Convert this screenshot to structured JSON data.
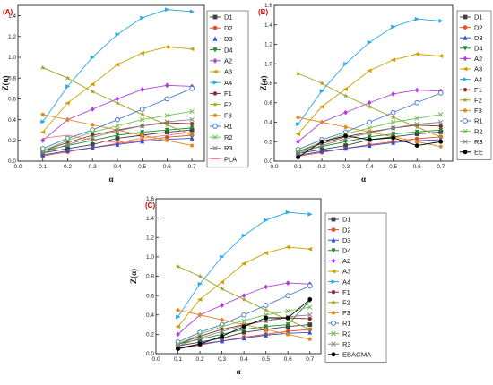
{
  "figure": {
    "background": "#ffffff"
  },
  "chart_data": [
    {
      "panel_label": "(A)",
      "type": "line",
      "xlabel": "α",
      "ylabel": "Z(α)",
      "x": [
        0.1,
        0.2,
        0.3,
        0.4,
        0.5,
        0.6,
        0.7
      ],
      "xlim": [
        0.0,
        0.75
      ],
      "ylim": [
        0.0,
        1.5
      ],
      "xticks": [
        "0.0",
        "0.1",
        "0.2",
        "0.3",
        "0.4",
        "0.5",
        "0.6",
        "0.7"
      ],
      "yticks": [
        "0.0",
        "0.2",
        "0.4",
        "0.6",
        "0.8",
        "1.0",
        "1.2",
        "1.4"
      ],
      "grid": false,
      "legend_position": "right",
      "series": [
        {
          "name": "D1",
          "color": "#404040",
          "marker": "square",
          "values": [
            0.08,
            0.12,
            0.16,
            0.22,
            0.25,
            0.28,
            0.3
          ]
        },
        {
          "name": "D2",
          "color": "#e8502a",
          "marker": "circle",
          "values": [
            0.05,
            0.09,
            0.13,
            0.17,
            0.2,
            0.23,
            0.25
          ]
        },
        {
          "name": "D3",
          "color": "#2f4fd0",
          "marker": "triangle-up",
          "values": [
            0.06,
            0.1,
            0.13,
            0.16,
            0.19,
            0.21,
            0.22
          ]
        },
        {
          "name": "D4",
          "color": "#1e8a2e",
          "marker": "triangle-down",
          "values": [
            0.1,
            0.15,
            0.2,
            0.25,
            0.28,
            0.3,
            0.32
          ]
        },
        {
          "name": "A2",
          "color": "#b040e0",
          "marker": "diamond",
          "values": [
            0.2,
            0.4,
            0.5,
            0.6,
            0.69,
            0.73,
            0.72
          ]
        },
        {
          "name": "A3",
          "color": "#d0a000",
          "marker": "triangle-left",
          "values": [
            0.28,
            0.56,
            0.74,
            0.93,
            1.04,
            1.1,
            1.08
          ]
        },
        {
          "name": "A4",
          "color": "#2aa8e8",
          "marker": "triangle-right",
          "values": [
            0.38,
            0.72,
            1.0,
            1.22,
            1.38,
            1.46,
            1.44
          ]
        },
        {
          "name": "F1",
          "color": "#8a2a2a",
          "marker": "hexagon",
          "values": [
            0.1,
            0.18,
            0.25,
            0.3,
            0.34,
            0.37,
            0.36
          ]
        },
        {
          "name": "F2",
          "color": "#a0a020",
          "marker": "star",
          "values": [
            0.9,
            0.8,
            0.67,
            0.56,
            0.45,
            0.35,
            0.25
          ]
        },
        {
          "name": "F3",
          "color": "#e08a20",
          "marker": "pentagon",
          "values": [
            0.45,
            0.4,
            0.35,
            0.3,
            0.25,
            0.2,
            0.15
          ]
        },
        {
          "name": "R1",
          "color": "#4a7ad0",
          "marker": "circle-open",
          "values": [
            0.12,
            0.22,
            0.3,
            0.4,
            0.5,
            0.6,
            0.7
          ]
        },
        {
          "name": "R2",
          "color": "#70c050",
          "marker": "x",
          "values": [
            0.1,
            0.2,
            0.28,
            0.34,
            0.4,
            0.44,
            0.48
          ]
        },
        {
          "name": "R3",
          "color": "#888888",
          "marker": "x",
          "values": [
            0.08,
            0.16,
            0.23,
            0.29,
            0.34,
            0.38,
            0.4
          ]
        },
        {
          "name": "PLA",
          "color": "#f08080",
          "marker": "line",
          "values": [
            0.22,
            0.25,
            0.2,
            0.18,
            0.22,
            0.25,
            0.28
          ]
        }
      ]
    },
    {
      "panel_label": "(B)",
      "type": "line",
      "xlabel": "α",
      "ylabel": "Z(α)",
      "x": [
        0.1,
        0.2,
        0.3,
        0.4,
        0.5,
        0.6,
        0.7
      ],
      "xlim": [
        0.0,
        0.75
      ],
      "ylim": [
        0.0,
        1.6
      ],
      "xticks": [
        "0.0",
        "0.1",
        "0.2",
        "0.3",
        "0.4",
        "0.5",
        "0.6",
        "0.7"
      ],
      "yticks": [
        "0.0",
        "0.2",
        "0.4",
        "0.6",
        "0.8",
        "1.0",
        "1.2",
        "1.4",
        "1.6"
      ],
      "grid": false,
      "legend_position": "right",
      "series": [
        {
          "name": "D1",
          "color": "#404040",
          "marker": "square",
          "values": [
            0.08,
            0.12,
            0.16,
            0.22,
            0.25,
            0.28,
            0.3
          ]
        },
        {
          "name": "D2",
          "color": "#e8502a",
          "marker": "circle",
          "values": [
            0.05,
            0.09,
            0.13,
            0.17,
            0.2,
            0.23,
            0.25
          ]
        },
        {
          "name": "D3",
          "color": "#2f4fd0",
          "marker": "triangle-up",
          "values": [
            0.06,
            0.1,
            0.13,
            0.16,
            0.19,
            0.21,
            0.22
          ]
        },
        {
          "name": "D4",
          "color": "#1e8a2e",
          "marker": "triangle-down",
          "values": [
            0.1,
            0.15,
            0.2,
            0.25,
            0.28,
            0.3,
            0.32
          ]
        },
        {
          "name": "A2",
          "color": "#b040e0",
          "marker": "diamond",
          "values": [
            0.2,
            0.4,
            0.5,
            0.6,
            0.69,
            0.73,
            0.72
          ]
        },
        {
          "name": "A3",
          "color": "#d0a000",
          "marker": "triangle-left",
          "values": [
            0.28,
            0.56,
            0.74,
            0.93,
            1.04,
            1.1,
            1.08
          ]
        },
        {
          "name": "A4",
          "color": "#2aa8e8",
          "marker": "triangle-right",
          "values": [
            0.38,
            0.72,
            1.0,
            1.22,
            1.38,
            1.46,
            1.44
          ]
        },
        {
          "name": "F1",
          "color": "#8a2a2a",
          "marker": "hexagon",
          "values": [
            0.1,
            0.18,
            0.25,
            0.3,
            0.34,
            0.37,
            0.36
          ]
        },
        {
          "name": "F2",
          "color": "#a0a020",
          "marker": "star",
          "values": [
            0.9,
            0.8,
            0.67,
            0.56,
            0.45,
            0.35,
            0.25
          ]
        },
        {
          "name": "F3",
          "color": "#e08a20",
          "marker": "pentagon",
          "values": [
            0.45,
            0.4,
            0.35,
            0.3,
            0.25,
            0.2,
            0.15
          ]
        },
        {
          "name": "R1",
          "color": "#4a7ad0",
          "marker": "circle-open",
          "values": [
            0.12,
            0.22,
            0.3,
            0.4,
            0.5,
            0.6,
            0.7
          ]
        },
        {
          "name": "R2",
          "color": "#70c050",
          "marker": "x",
          "values": [
            0.1,
            0.2,
            0.28,
            0.34,
            0.4,
            0.44,
            0.48
          ]
        },
        {
          "name": "R3",
          "color": "#888888",
          "marker": "x",
          "values": [
            0.08,
            0.16,
            0.23,
            0.29,
            0.34,
            0.38,
            0.4
          ]
        },
        {
          "name": "EE",
          "color": "#000000",
          "marker": "circle",
          "values": [
            0.04,
            0.2,
            0.26,
            0.22,
            0.24,
            0.16,
            0.2
          ]
        }
      ]
    },
    {
      "panel_label": "(C)",
      "type": "line",
      "xlabel": "α",
      "ylabel": "Z(α)",
      "x": [
        0.1,
        0.2,
        0.3,
        0.4,
        0.5,
        0.6,
        0.7
      ],
      "xlim": [
        0.0,
        0.75
      ],
      "ylim": [
        0.0,
        1.6
      ],
      "xticks": [
        "0.0",
        "0.1",
        "0.2",
        "0.3",
        "0.4",
        "0.5",
        "0.6",
        "0.7"
      ],
      "yticks": [
        "0.0",
        "0.2",
        "0.4",
        "0.6",
        "0.8",
        "1.0",
        "1.2",
        "1.4",
        "1.6"
      ],
      "grid": false,
      "legend_position": "right",
      "series": [
        {
          "name": "D1",
          "color": "#404040",
          "marker": "square",
          "values": [
            0.08,
            0.12,
            0.16,
            0.22,
            0.25,
            0.28,
            0.3
          ]
        },
        {
          "name": "D2",
          "color": "#e8502a",
          "marker": "circle",
          "values": [
            0.05,
            0.09,
            0.13,
            0.17,
            0.2,
            0.23,
            0.25
          ]
        },
        {
          "name": "D3",
          "color": "#2f4fd0",
          "marker": "triangle-up",
          "values": [
            0.06,
            0.1,
            0.13,
            0.16,
            0.19,
            0.21,
            0.22
          ]
        },
        {
          "name": "D4",
          "color": "#1e8a2e",
          "marker": "triangle-down",
          "values": [
            0.1,
            0.15,
            0.2,
            0.25,
            0.28,
            0.3,
            0.55
          ]
        },
        {
          "name": "A2",
          "color": "#b040e0",
          "marker": "diamond",
          "values": [
            0.2,
            0.4,
            0.5,
            0.6,
            0.69,
            0.73,
            0.72
          ]
        },
        {
          "name": "A3",
          "color": "#d0a000",
          "marker": "triangle-left",
          "values": [
            0.28,
            0.56,
            0.74,
            0.93,
            1.04,
            1.1,
            1.08
          ]
        },
        {
          "name": "A4",
          "color": "#2aa8e8",
          "marker": "triangle-right",
          "values": [
            0.38,
            0.72,
            1.0,
            1.22,
            1.38,
            1.46,
            1.44
          ]
        },
        {
          "name": "F1",
          "color": "#8a2a2a",
          "marker": "hexagon",
          "values": [
            0.1,
            0.18,
            0.25,
            0.3,
            0.34,
            0.37,
            0.36
          ]
        },
        {
          "name": "F2",
          "color": "#a0a020",
          "marker": "star",
          "values": [
            0.9,
            0.8,
            0.67,
            0.56,
            0.45,
            0.35,
            0.25
          ]
        },
        {
          "name": "F3",
          "color": "#e08a20",
          "marker": "pentagon",
          "values": [
            0.45,
            0.4,
            0.35,
            0.3,
            0.25,
            0.2,
            0.15
          ]
        },
        {
          "name": "R1",
          "color": "#4a7ad0",
          "marker": "circle-open",
          "values": [
            0.12,
            0.22,
            0.3,
            0.4,
            0.5,
            0.6,
            0.7
          ]
        },
        {
          "name": "R2",
          "color": "#70c050",
          "marker": "x",
          "values": [
            0.1,
            0.2,
            0.28,
            0.34,
            0.4,
            0.44,
            0.48
          ]
        },
        {
          "name": "R3",
          "color": "#888888",
          "marker": "x",
          "values": [
            0.08,
            0.16,
            0.23,
            0.29,
            0.34,
            0.38,
            0.4
          ]
        },
        {
          "name": "EBAGMA",
          "color": "#000000",
          "marker": "circle",
          "values": [
            0.05,
            0.1,
            0.18,
            0.28,
            0.37,
            0.37,
            0.56
          ]
        }
      ]
    }
  ]
}
